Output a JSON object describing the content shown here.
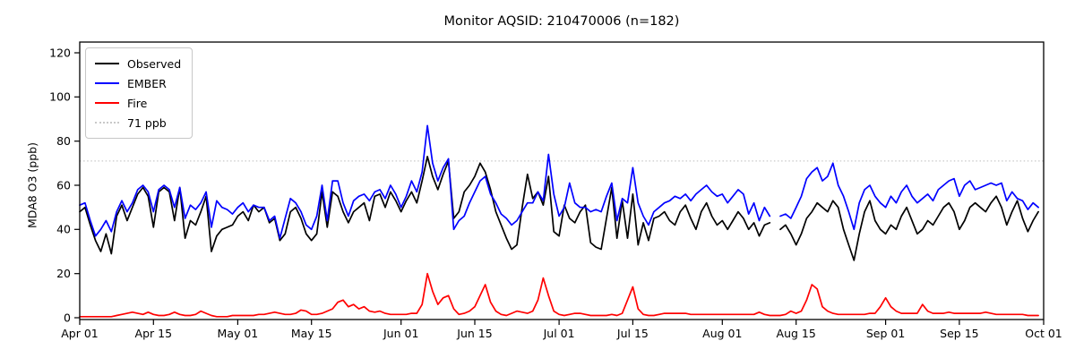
{
  "figure": {
    "title": "Monitor AQSID: 210470006 (n=182)"
  },
  "axes": {
    "y_label": "MDA8 O3 (ppb)"
  },
  "legend": {
    "items": [
      {
        "label": "Observed",
        "color": "#000000",
        "style": "solid"
      },
      {
        "label": "EMBER",
        "color": "#0000ff",
        "style": "solid"
      },
      {
        "label": "Fire",
        "color": "#ff0000",
        "style": "solid"
      },
      {
        "label": "71 ppb",
        "color": "#c9c9c9",
        "style": "dotted"
      }
    ]
  },
  "chart_data": {
    "type": "line",
    "title": "Monitor AQSID: 210470006 (n=182)",
    "xlabel": "",
    "ylabel": "MDA8 O3 (ppb)",
    "ylim": [
      0,
      125
    ],
    "y_ticks": [
      0,
      20,
      40,
      60,
      80,
      100,
      120
    ],
    "grid": false,
    "legend_position": "upper left",
    "x_unit": "days since Apr 01",
    "x_span_days": 183,
    "x_ticks": [
      {
        "day": 0,
        "label": "Apr 01"
      },
      {
        "day": 14,
        "label": "Apr 15"
      },
      {
        "day": 30,
        "label": "May 01"
      },
      {
        "day": 44,
        "label": "May 15"
      },
      {
        "day": 61,
        "label": "Jun 01"
      },
      {
        "day": 75,
        "label": "Jun 15"
      },
      {
        "day": 91,
        "label": "Jul 01"
      },
      {
        "day": 105,
        "label": "Jul 15"
      },
      {
        "day": 122,
        "label": "Aug 01"
      },
      {
        "day": 136,
        "label": "Aug 15"
      },
      {
        "day": 153,
        "label": "Sep 01"
      },
      {
        "day": 167,
        "label": "Sep 15"
      },
      {
        "day": 183,
        "label": "Oct 01"
      }
    ],
    "reference_line": {
      "value": 71,
      "label": "71 ppb",
      "color": "#c9c9c9",
      "style": "dotted"
    },
    "series": [
      {
        "name": "Observed",
        "color": "#000000",
        "values": [
          48,
          50,
          42,
          35,
          30,
          38,
          29,
          46,
          51,
          44,
          50,
          56,
          59,
          55,
          41,
          57,
          59,
          57,
          44,
          59,
          36,
          44,
          42,
          48,
          55,
          30,
          37,
          40,
          41,
          42,
          46,
          48,
          44,
          51,
          48,
          50,
          43,
          45,
          35,
          38,
          48,
          50,
          45,
          38,
          35,
          38,
          57,
          41,
          57,
          55,
          48,
          43,
          48,
          50,
          52,
          44,
          55,
          56,
          50,
          57,
          53,
          48,
          53,
          57,
          52,
          62,
          73,
          64,
          58,
          65,
          71,
          45,
          48,
          57,
          60,
          64,
          70,
          66,
          58,
          48,
          42,
          36,
          31,
          33,
          50,
          65,
          54,
          57,
          51,
          64,
          39,
          37,
          51,
          45,
          43,
          48,
          51,
          34,
          32,
          31,
          45,
          59,
          36,
          53,
          36,
          56,
          33,
          43,
          35,
          45,
          46,
          48,
          44,
          42,
          48,
          51,
          45,
          40,
          48,
          52,
          46,
          42,
          44,
          40,
          44,
          48,
          45,
          40,
          43,
          37,
          42,
          43,
          null,
          40,
          42,
          38,
          33,
          38,
          45,
          48,
          52,
          50,
          48,
          53,
          50,
          40,
          33,
          26,
          38,
          48,
          53,
          44,
          40,
          38,
          42,
          40,
          46,
          50,
          44,
          38,
          40,
          44,
          42,
          46,
          50,
          52,
          48,
          40,
          44,
          50,
          52,
          50,
          48,
          52,
          55,
          50,
          42,
          48,
          53,
          45,
          39,
          44,
          48
        ]
      },
      {
        "name": "EMBER",
        "color": "#0000ff",
        "values": [
          51,
          52,
          44,
          37,
          40,
          44,
          39,
          48,
          53,
          48,
          52,
          58,
          60,
          57,
          48,
          58,
          60,
          58,
          50,
          59,
          45,
          51,
          49,
          52,
          57,
          41,
          53,
          50,
          49,
          47,
          50,
          52,
          48,
          51,
          50,
          50,
          44,
          46,
          36,
          45,
          54,
          52,
          48,
          42,
          40,
          46,
          60,
          44,
          62,
          62,
          52,
          46,
          53,
          55,
          56,
          53,
          57,
          58,
          54,
          60,
          56,
          50,
          55,
          62,
          57,
          66,
          87,
          70,
          62,
          68,
          72,
          40,
          44,
          46,
          52,
          57,
          62,
          64,
          56,
          52,
          47,
          45,
          42,
          44,
          48,
          52,
          52,
          57,
          53,
          74,
          56,
          46,
          50,
          61,
          52,
          50,
          50,
          48,
          49,
          48,
          55,
          61,
          44,
          54,
          52,
          68,
          52,
          46,
          42,
          48,
          50,
          52,
          53,
          55,
          54,
          56,
          53,
          56,
          58,
          60,
          57,
          55,
          56,
          52,
          55,
          58,
          56,
          47,
          52,
          44,
          50,
          46,
          null,
          46,
          47,
          45,
          50,
          55,
          63,
          66,
          68,
          62,
          64,
          70,
          60,
          55,
          48,
          40,
          52,
          58,
          60,
          55,
          52,
          50,
          55,
          52,
          57,
          60,
          55,
          52,
          54,
          56,
          53,
          58,
          60,
          62,
          63,
          55,
          60,
          62,
          58,
          59,
          60,
          61,
          60,
          61,
          53,
          57,
          54,
          53,
          49,
          52,
          50
        ]
      },
      {
        "name": "Fire",
        "color": "#ff0000",
        "values": [
          0.5,
          0.5,
          0.5,
          0.5,
          0.5,
          0.5,
          0.5,
          1,
          1.5,
          2,
          2.5,
          2,
          1.5,
          2.5,
          1.5,
          1,
          1,
          1.5,
          2.5,
          1.5,
          1,
          1,
          1.5,
          3,
          2,
          1,
          0.5,
          0.5,
          0.5,
          1,
          1,
          1,
          1,
          1,
          1.5,
          1.5,
          2,
          2.5,
          2,
          1.5,
          1.5,
          2,
          3.5,
          3,
          1.5,
          1.5,
          2,
          3,
          4,
          7,
          8,
          5,
          6,
          4,
          5,
          3,
          2.5,
          3,
          2,
          1.5,
          1.5,
          1.5,
          1.5,
          2,
          2,
          6,
          20,
          12,
          6,
          9,
          10,
          4,
          1.5,
          2,
          3,
          5,
          10,
          15,
          7,
          3,
          1.5,
          1,
          2,
          3,
          2.5,
          2,
          3,
          8,
          18,
          10,
          3,
          1.5,
          1,
          1.5,
          2,
          2,
          1.5,
          1,
          1,
          1,
          1,
          1.5,
          1,
          2,
          8,
          14,
          4,
          1.5,
          1,
          1,
          1.5,
          2,
          2,
          2,
          2,
          2,
          1.5,
          1.5,
          1.5,
          1.5,
          1.5,
          1.5,
          1.5,
          1.5,
          1.5,
          1.5,
          1.5,
          1.5,
          1.5,
          2.5,
          1.5,
          1,
          1,
          1,
          1.5,
          3,
          2,
          3,
          8,
          15,
          13,
          5,
          3,
          2,
          1.5,
          1.5,
          1.5,
          1.5,
          1.5,
          1.5,
          2,
          2,
          5,
          9,
          5,
          3,
          2,
          2,
          2,
          2,
          6,
          3,
          2,
          2,
          2,
          2.5,
          2,
          2,
          2,
          2,
          2,
          2,
          2.5,
          2,
          1.5,
          1.5,
          1.5,
          1.5,
          1.5,
          1.5,
          1,
          1,
          1
        ]
      }
    ]
  }
}
